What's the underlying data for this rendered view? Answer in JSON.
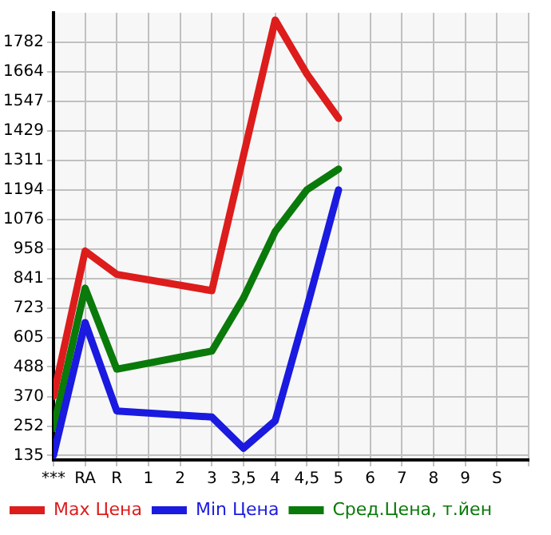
{
  "chart_data": {
    "type": "line",
    "categories": [
      "***",
      "RA",
      "R",
      "1",
      "2",
      "3",
      "3,5",
      "4",
      "4,5",
      "5",
      "6",
      "7",
      "8",
      "9",
      "S"
    ],
    "series": [
      {
        "name": "Max Цена",
        "color": "#dd1c1c",
        "values": [
          370,
          950,
          857,
          null,
          null,
          792,
          null,
          1871,
          1656,
          1479,
          null,
          null,
          null,
          null,
          null
        ]
      },
      {
        "name": "Min Цена",
        "color": "#1a1ae0",
        "values": [
          135,
          665,
          312,
          null,
          null,
          288,
          164,
          273,
          724,
          1194,
          null,
          null,
          null,
          null,
          null
        ]
      },
      {
        "name": "Сред.Цена, т.йен",
        "color": "#0a7a0a",
        "values": [
          243,
          802,
          479,
          null,
          null,
          551,
          763,
          1028,
          1194,
          1277,
          null,
          null,
          null,
          null,
          null
        ]
      }
    ],
    "ylim": [
      117,
      1900
    ],
    "yticks": [
      135,
      252,
      370,
      488,
      605,
      723,
      841,
      958,
      1076,
      1194,
      1311,
      1429,
      1547,
      1664,
      1782
    ],
    "grid": true,
    "legend": "bottom",
    "marker": "none",
    "line_style": "solid"
  }
}
